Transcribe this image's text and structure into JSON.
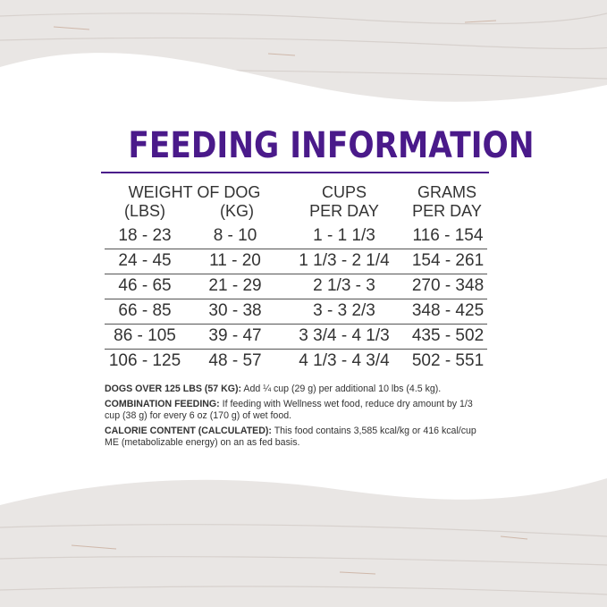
{
  "title": "FEEDING INFORMATION",
  "colors": {
    "title": "#4a1a8a",
    "text": "#333333",
    "wood": "#e9e6e4"
  },
  "headers": {
    "weight": "WEIGHT OF DOG",
    "lbs": "(LBS)",
    "kg": "(KG)",
    "cups_1": "CUPS",
    "cups_2": "PER DAY",
    "grams_1": "GRAMS",
    "grams_2": "PER DAY"
  },
  "rows": [
    {
      "lbs": "18 - 23",
      "kg": "8 - 10",
      "cups": "1 - 1 1/3",
      "grams": "116 - 154"
    },
    {
      "lbs": "24 - 45",
      "kg": "11 - 20",
      "cups": "1 1/3 - 2 1/4",
      "grams": "154 - 261"
    },
    {
      "lbs": "46 - 65",
      "kg": "21 - 29",
      "cups": "2 1/3 - 3",
      "grams": "270 - 348"
    },
    {
      "lbs": "66 - 85",
      "kg": "30 - 38",
      "cups": "3 - 3 2/3",
      "grams": "348 - 425"
    },
    {
      "lbs": "86 - 105",
      "kg": "39 - 47",
      "cups": "3 3/4 - 4 1/3",
      "grams": "435 - 502"
    },
    {
      "lbs": "106 - 125",
      "kg": "48 - 57",
      "cups": "4 1/3 - 4 3/4",
      "grams": "502 - 551"
    }
  ],
  "notes": [
    {
      "label": "DOGS OVER 125 LBS (57 KG):",
      "text": " Add ¼ cup (29 g) per additional 10 lbs (4.5 kg)."
    },
    {
      "label": "COMBINATION FEEDING:",
      "text": " If feeding with Wellness wet food, reduce dry amount by 1/3 cup (38 g) for every 6 oz (170 g) of wet food."
    },
    {
      "label": "CALORIE CONTENT (CALCULATED):",
      "text": " This food contains 3,585 kcal/kg or 416 kcal/cup ME (metabolizable energy) on an as fed basis."
    }
  ]
}
